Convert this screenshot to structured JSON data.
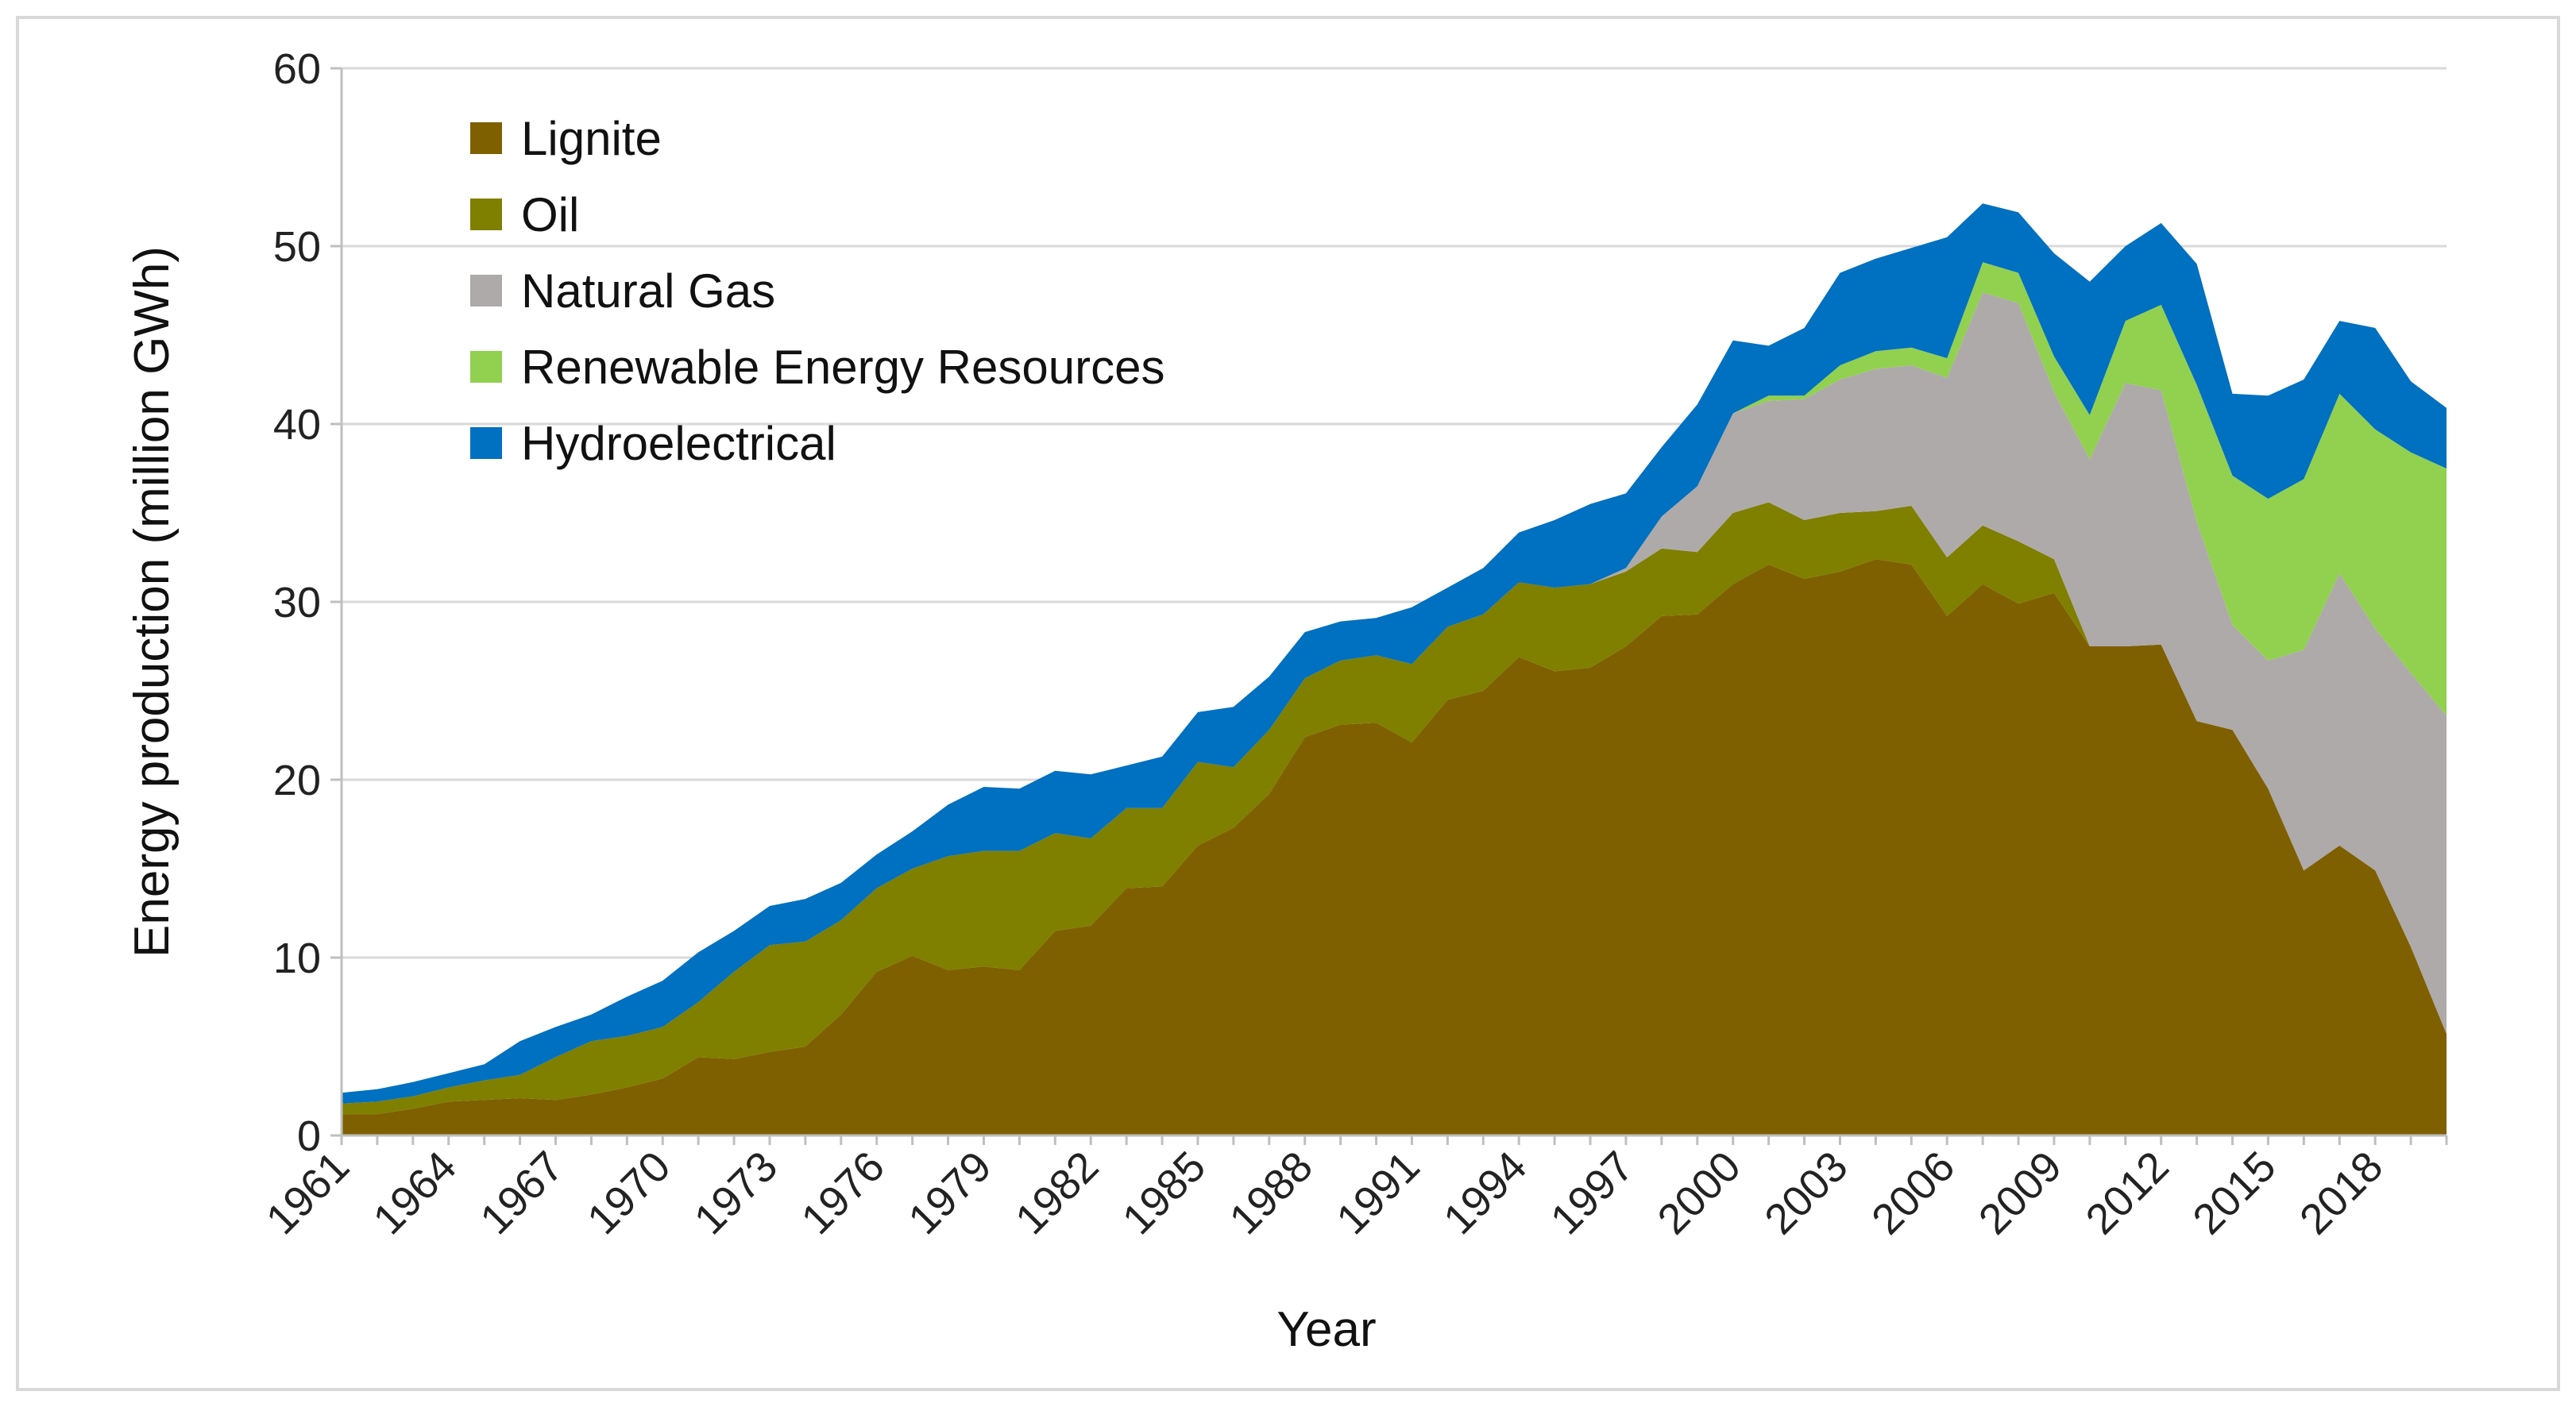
{
  "chart_data": {
    "type": "area",
    "stacked": true,
    "title": "",
    "xlabel": "Year",
    "ylabel": "Energy production (million GWh)",
    "ylim": [
      0,
      60
    ],
    "yticks": [
      0,
      10,
      20,
      30,
      40,
      50,
      60
    ],
    "grid": "horizontal",
    "legend_position": "top-left",
    "x": [
      1961,
      1962,
      1963,
      1964,
      1965,
      1966,
      1967,
      1968,
      1969,
      1970,
      1971,
      1972,
      1973,
      1974,
      1975,
      1976,
      1977,
      1978,
      1979,
      1980,
      1981,
      1982,
      1983,
      1984,
      1985,
      1986,
      1987,
      1988,
      1989,
      1990,
      1991,
      1992,
      1993,
      1994,
      1995,
      1996,
      1997,
      1998,
      1999,
      2000,
      2001,
      2002,
      2003,
      2004,
      2005,
      2006,
      2007,
      2008,
      2009,
      2010,
      2011,
      2012,
      2013,
      2014,
      2015,
      2016,
      2017,
      2018,
      2019,
      2020
    ],
    "x_tick_labels": [
      "1961",
      "1964",
      "1967",
      "1970",
      "1973",
      "1976",
      "1979",
      "1982",
      "1985",
      "1988",
      "1991",
      "1994",
      "1997",
      "2000",
      "2003",
      "2006",
      "2009",
      "2012",
      "2015",
      "2018"
    ],
    "series": [
      {
        "name": "Lignite",
        "color": "#7f6000",
        "values": [
          1.2,
          1.2,
          1.5,
          1.9,
          2.0,
          2.1,
          2.0,
          2.3,
          2.7,
          3.2,
          4.4,
          4.3,
          4.7,
          5.0,
          6.8,
          9.2,
          10.1,
          9.3,
          9.5,
          9.3,
          11.5,
          11.8,
          13.9,
          14.0,
          16.3,
          17.3,
          19.2,
          22.4,
          23.1,
          23.2,
          22.1,
          24.5,
          25.0,
          26.9,
          26.1,
          26.3,
          27.5,
          29.2,
          29.3,
          31.0,
          32.1,
          31.3,
          31.7,
          32.4,
          32.1,
          29.2,
          31.0,
          29.9,
          30.5,
          27.5,
          27.5,
          27.6,
          23.3,
          22.8,
          19.5,
          14.9,
          16.3,
          14.9,
          10.6,
          5.7
        ]
      },
      {
        "name": "Oil",
        "color": "#7f7f00",
        "values": [
          0.6,
          0.7,
          0.7,
          0.8,
          1.1,
          1.3,
          2.4,
          3.0,
          2.9,
          2.9,
          3.1,
          4.9,
          6.0,
          5.9,
          5.3,
          4.7,
          4.9,
          6.4,
          6.5,
          6.7,
          5.5,
          4.9,
          4.5,
          4.4,
          4.7,
          3.4,
          3.6,
          3.3,
          3.6,
          3.8,
          4.4,
          4.1,
          4.3,
          4.2,
          4.7,
          4.7,
          4.2,
          3.8,
          3.5,
          4.0,
          3.5,
          3.3,
          3.3,
          2.7,
          3.3,
          3.3,
          3.3,
          3.5,
          1.9,
          0.0,
          0.0,
          0.0,
          0.0,
          0.0,
          0.0,
          0.0,
          0.0,
          0.0,
          0.0,
          0.0
        ]
      },
      {
        "name": "Natural Gas",
        "color": "#aeaaaa",
        "values": [
          0,
          0,
          0,
          0,
          0,
          0,
          0,
          0,
          0,
          0,
          0,
          0,
          0,
          0,
          0,
          0,
          0,
          0,
          0,
          0,
          0,
          0,
          0,
          0,
          0,
          0,
          0,
          0,
          0,
          0,
          0,
          0,
          0,
          0,
          0,
          0,
          0.2,
          1.8,
          3.7,
          5.6,
          5.7,
          6.8,
          7.5,
          8.0,
          7.9,
          10.1,
          13.1,
          13.4,
          9.4,
          10.5,
          14.8,
          14.3,
          11.2,
          5.9,
          7.2,
          12.4,
          15.3,
          13.6,
          15.4,
          17.9
        ]
      },
      {
        "name": "Renewable Energy Resources",
        "color": "#92d050",
        "values": [
          0,
          0,
          0,
          0,
          0,
          0,
          0,
          0,
          0,
          0,
          0,
          0,
          0,
          0,
          0,
          0,
          0,
          0,
          0,
          0,
          0,
          0,
          0,
          0,
          0,
          0,
          0,
          0,
          0,
          0,
          0,
          0,
          0,
          0,
          0,
          0,
          0,
          0,
          0,
          0,
          0.3,
          0.2,
          0.8,
          1.0,
          1.0,
          1.1,
          1.7,
          1.7,
          2.0,
          2.5,
          3.5,
          4.8,
          7.7,
          8.4,
          9.1,
          9.6,
          10.1,
          11.2,
          12.4,
          13.9
        ]
      },
      {
        "name": "Hydroelectrical",
        "color": "#0070c0",
        "values": [
          0.6,
          0.7,
          0.8,
          0.8,
          0.9,
          1.9,
          1.7,
          1.5,
          2.2,
          2.6,
          2.8,
          2.3,
          2.2,
          2.4,
          2.1,
          1.9,
          2.1,
          2.9,
          3.6,
          3.5,
          3.5,
          3.6,
          2.4,
          2.9,
          2.8,
          3.4,
          3.0,
          2.6,
          2.2,
          2.1,
          3.2,
          2.2,
          2.6,
          2.8,
          3.8,
          4.5,
          4.2,
          3.9,
          4.6,
          4.1,
          2.8,
          3.8,
          5.2,
          5.2,
          5.6,
          6.8,
          3.3,
          3.4,
          5.8,
          7.5,
          4.2,
          4.6,
          6.8,
          4.6,
          5.8,
          5.6,
          4.1,
          5.7,
          4.0,
          3.4
        ]
      }
    ]
  }
}
